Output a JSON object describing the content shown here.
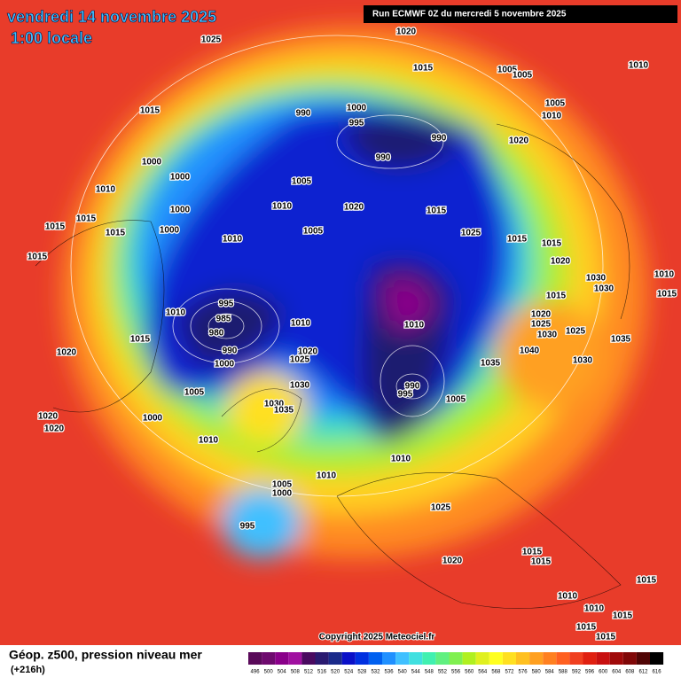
{
  "header": {
    "date": "vendredi 14 novembre 2025",
    "time": "1:00 locale",
    "run": "Run ECMWF 0Z du mercredi 5 novembre 2025"
  },
  "footer": {
    "copyright": "Copyright 2025 Meteociel.fr",
    "field": "Géop. z500, pression niveau mer",
    "lead": "(+216h)"
  },
  "legend": {
    "values": [
      496,
      500,
      504,
      508,
      512,
      516,
      520,
      524,
      528,
      532,
      536,
      540,
      544,
      548,
      552,
      556,
      560,
      564,
      568,
      572,
      576,
      580,
      584,
      588,
      592,
      596,
      600,
      604,
      608,
      612,
      616
    ],
    "colors": [
      "#5a0a5a",
      "#6e0a6e",
      "#8a008a",
      "#a010a0",
      "#4a0a60",
      "#2a1a70",
      "#1a2a8a",
      "#0a10c8",
      "#0030e0",
      "#0060f0",
      "#2090ff",
      "#40c0ff",
      "#40e0e0",
      "#40f0b0",
      "#60f080",
      "#80f050",
      "#b0f020",
      "#e0f020",
      "#ffff20",
      "#ffe020",
      "#ffc020",
      "#ffa020",
      "#ff8020",
      "#ff6020",
      "#f04020",
      "#e02010",
      "#c81010",
      "#a00a0a",
      "#800808",
      "#500505",
      "#000000"
    ]
  },
  "pressure_labels": [
    1025,
    1020,
    1015,
    1005,
    1005,
    1010,
    1015,
    990,
    1000,
    995,
    990,
    990,
    1020,
    1010,
    1005,
    1000,
    1000,
    1005,
    1010,
    1010,
    1020,
    1015,
    1000,
    1015,
    1015,
    1015,
    1000,
    1005,
    1025,
    1015,
    1015,
    1010,
    1015,
    1020,
    1030,
    1030,
    1015,
    1010,
    995,
    985,
    980,
    990,
    1010,
    1015,
    1020,
    1025,
    1020,
    1000,
    1010,
    1020,
    1025,
    1030,
    1025,
    1035,
    1040,
    1030,
    1035,
    1030,
    990,
    995,
    1005,
    1005,
    1030,
    1035,
    1000,
    1020,
    1020,
    1010,
    1010,
    1010,
    1005,
    1000,
    995,
    1025,
    1020,
    1015,
    1015,
    1015,
    1010,
    1010,
    1015,
    1015,
    1015,
    1010,
    1015
  ]
}
